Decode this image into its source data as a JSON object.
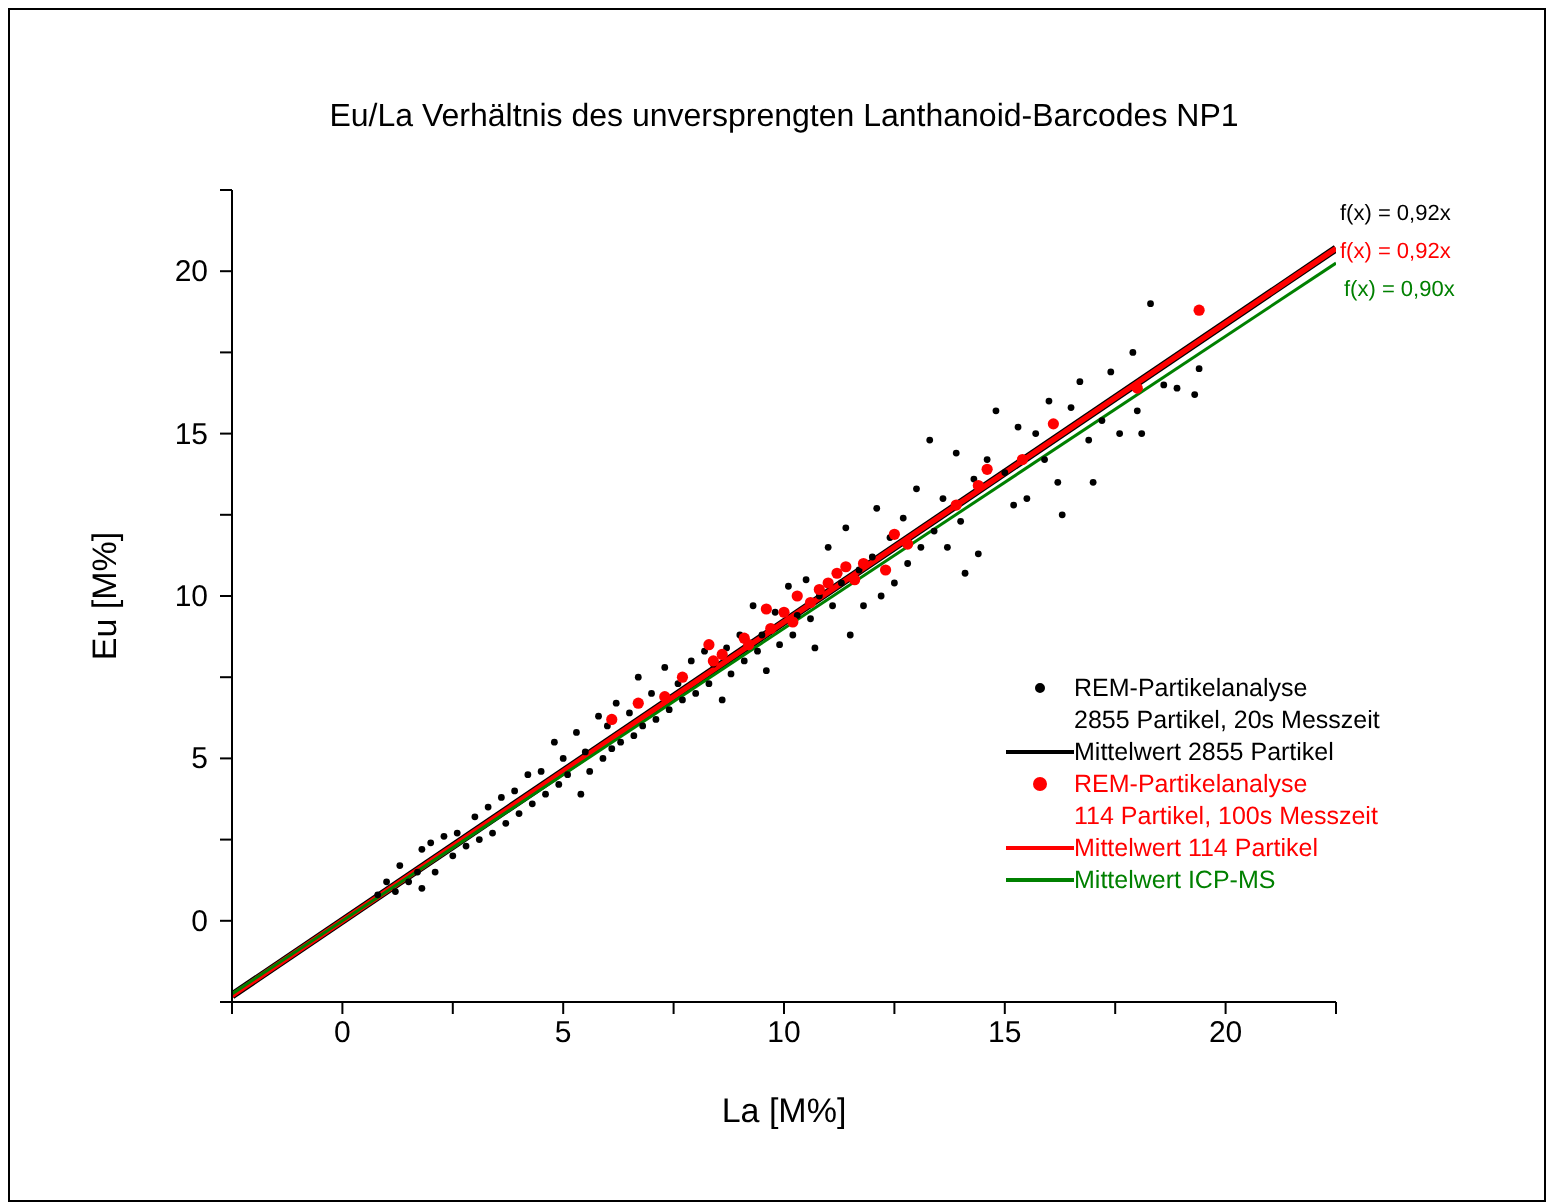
{
  "chart_data": {
    "type": "scatter",
    "title": "Eu/La Verhältnis des unversprengten Lanthanoid-Barcodes NP1",
    "xlabel": "La [M%]",
    "ylabel": "Eu [M%]",
    "xlim": [
      -2.5,
      22.5
    ],
    "ylim": [
      -2.5,
      22.5
    ],
    "xticks": [
      {
        "value": -2.5,
        "label": null
      },
      0,
      {
        "value": 2.5,
        "label": null
      },
      5,
      {
        "value": 7.5,
        "label": null
      },
      10,
      {
        "value": 12.5,
        "label": null
      },
      15,
      {
        "value": 17.5,
        "label": null
      },
      20,
      {
        "value": 22.5,
        "label": null
      }
    ],
    "yticks": [
      {
        "value": -2.5,
        "label": null
      },
      0,
      {
        "value": 2.5,
        "label": null
      },
      5,
      {
        "value": 7.5,
        "label": null
      },
      10,
      {
        "value": 12.5,
        "label": null
      },
      15,
      {
        "value": 17.5,
        "label": null
      },
      20,
      {
        "value": 22.5,
        "label": null
      }
    ],
    "grid": false,
    "legend": "right",
    "annotations": [
      "f(x) = 0,92x",
      "f(x) = 0,92x",
      "f(x) = 0,90x"
    ],
    "series": [
      {
        "marker": "circle",
        "name": "REM-Partikelanalyse\n2855 Partikel, 20s Messzeit",
        "color": "#000000",
        "x": [
          0.8,
          1.0,
          1.2,
          1.3,
          1.5,
          1.7,
          1.8,
          1.8,
          2.0,
          2.1,
          2.3,
          2.5,
          2.6,
          2.8,
          3.0,
          3.1,
          3.3,
          3.4,
          3.6,
          3.7,
          3.9,
          4.0,
          4.2,
          4.3,
          4.5,
          4.6,
          4.8,
          4.9,
          5.0,
          5.1,
          5.3,
          5.4,
          5.5,
          5.6,
          5.8,
          5.9,
          6.0,
          6.1,
          6.2,
          6.3,
          6.5,
          6.6,
          6.7,
          6.8,
          7.0,
          7.1,
          7.3,
          7.4,
          7.6,
          7.7,
          7.9,
          8.0,
          8.2,
          8.3,
          8.4,
          8.6,
          8.7,
          8.8,
          9.0,
          9.1,
          9.3,
          9.4,
          9.5,
          9.6,
          9.8,
          9.9,
          10.1,
          10.2,
          10.3,
          10.5,
          10.6,
          10.7,
          10.8,
          11.0,
          11.1,
          11.3,
          11.4,
          11.5,
          11.7,
          11.8,
          12.0,
          12.1,
          12.2,
          12.4,
          12.5,
          12.7,
          12.8,
          13.0,
          13.1,
          13.3,
          13.4,
          13.6,
          13.7,
          13.9,
          14.0,
          14.1,
          14.3,
          14.4,
          14.6,
          14.8,
          15.0,
          15.2,
          15.3,
          15.5,
          15.7,
          15.9,
          16.0,
          16.2,
          16.3,
          16.5,
          16.7,
          16.9,
          17.0,
          17.2,
          17.4,
          17.6,
          17.9,
          18.0,
          18.1,
          18.3,
          18.6,
          18.9,
          19.3,
          19.4
        ],
        "values": [
          0.8,
          1.2,
          0.9,
          1.7,
          1.2,
          1.5,
          2.2,
          1.0,
          2.4,
          1.5,
          2.6,
          2.0,
          2.7,
          2.3,
          3.2,
          2.5,
          3.5,
          2.7,
          3.8,
          3.0,
          4.0,
          3.3,
          4.5,
          3.6,
          4.6,
          3.9,
          5.5,
          4.2,
          5.0,
          4.5,
          5.8,
          3.9,
          5.2,
          4.6,
          6.3,
          5.0,
          6.0,
          5.3,
          6.7,
          5.5,
          6.4,
          5.7,
          7.5,
          6.0,
          7.0,
          6.2,
          7.8,
          6.5,
          7.3,
          6.8,
          8.0,
          7.0,
          8.3,
          7.3,
          7.9,
          6.8,
          8.4,
          7.6,
          8.8,
          8.0,
          9.7,
          8.3,
          8.8,
          7.7,
          9.5,
          8.5,
          10.3,
          8.8,
          9.4,
          10.5,
          9.3,
          8.4,
          10.0,
          11.5,
          9.7,
          10.4,
          12.1,
          8.8,
          10.8,
          9.7,
          11.2,
          12.7,
          10.0,
          11.8,
          10.4,
          12.4,
          11.0,
          13.3,
          11.5,
          14.8,
          12.0,
          13.0,
          11.5,
          14.4,
          12.3,
          10.7,
          13.6,
          11.3,
          14.2,
          15.7,
          13.8,
          12.8,
          15.2,
          13.0,
          15.0,
          14.2,
          16.0,
          13.5,
          12.5,
          15.8,
          16.6,
          14.8,
          13.5,
          15.4,
          16.9,
          15.0,
          17.5,
          15.7,
          15.0,
          19.0,
          16.5,
          16.4,
          16.2,
          17.0
        ]
      },
      {
        "type": "line",
        "marker": "none",
        "line_style": "solid",
        "name": "Mittelwert 2855 Partikel",
        "color": "#000000",
        "x": [
          -2.5,
          22.5
        ],
        "values": [
          -2.3,
          20.7
        ]
      },
      {
        "marker": "circle",
        "name": "REM-Partikelanalyse\n114 Partikel, 100s Messzeit",
        "color": "#ff0000",
        "x": [
          6.1,
          6.7,
          7.3,
          7.7,
          8.3,
          8.4,
          8.6,
          9.1,
          9.2,
          9.6,
          9.7,
          10.0,
          10.2,
          10.3,
          10.6,
          10.8,
          11.0,
          11.2,
          11.4,
          11.6,
          11.8,
          12.3,
          12.5,
          12.8,
          13.9,
          14.4,
          14.6,
          15.4,
          16.1,
          18.0,
          19.4
        ],
        "values": [
          6.2,
          6.7,
          6.9,
          7.5,
          8.5,
          8.0,
          8.2,
          8.7,
          8.5,
          9.6,
          9.0,
          9.5,
          9.2,
          10.0,
          9.8,
          10.2,
          10.4,
          10.7,
          10.9,
          10.5,
          11.0,
          10.8,
          11.9,
          11.6,
          12.8,
          13.4,
          13.9,
          14.2,
          15.3,
          16.4,
          18.8
        ]
      },
      {
        "type": "line",
        "marker": "none",
        "line_style": "solid",
        "name": "Mittelwert 114 Partikel",
        "color": "#ff0000",
        "x": [
          -2.5,
          22.5
        ],
        "values": [
          -2.3,
          20.7
        ]
      },
      {
        "type": "line",
        "marker": "none",
        "line_style": "solid",
        "name": "Mittelwert ICP-MS",
        "color": "#008000",
        "x": [
          -2.5,
          22.5
        ],
        "values": [
          -2.25,
          20.25
        ]
      }
    ]
  }
}
